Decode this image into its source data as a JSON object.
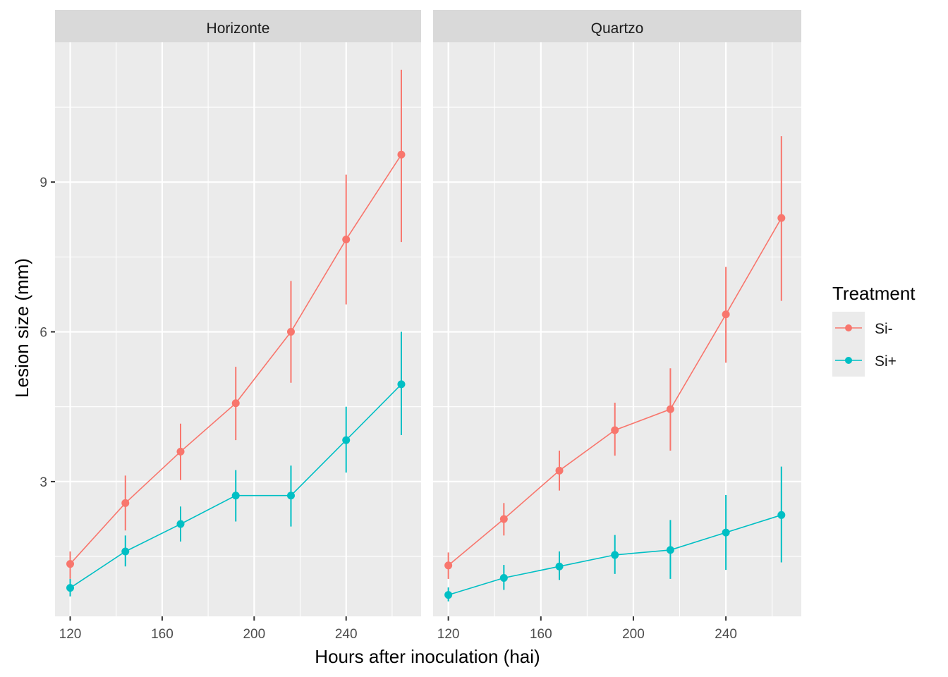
{
  "chart_data": {
    "type": "line",
    "xlabel": "Hours after inoculation (hai)",
    "ylabel": "Lesion size (mm)",
    "x_ticks": [
      120,
      160,
      200,
      240
    ],
    "y_ticks": [
      3,
      6,
      9
    ],
    "xlim": [
      113.4,
      272.6
    ],
    "ylim": [
      0.3,
      11.8
    ],
    "grid": true,
    "legend": {
      "title": "Treatment",
      "position": "right",
      "entries": [
        {
          "label": "Si-",
          "color": "#F8766D"
        },
        {
          "label": "Si+",
          "color": "#00BFC4"
        }
      ]
    },
    "x": [
      120,
      144,
      168,
      192,
      216,
      240,
      264
    ],
    "panels": [
      {
        "title": "Horizonte",
        "series": [
          {
            "name": "Si-",
            "color": "#F8766D",
            "values": [
              1.35,
              2.57,
              3.6,
              4.57,
              6.0,
              7.85,
              9.55
            ],
            "lower": [
              1.05,
              2.02,
              3.03,
              3.83,
              4.98,
              6.55,
              7.8
            ],
            "upper": [
              1.6,
              3.12,
              4.16,
              5.3,
              7.02,
              9.15,
              11.25
            ]
          },
          {
            "name": "Si+",
            "color": "#00BFC4",
            "values": [
              0.87,
              1.6,
              2.15,
              2.72,
              2.72,
              3.83,
              4.95
            ],
            "lower": [
              0.7,
              1.3,
              1.8,
              2.2,
              2.1,
              3.18,
              3.93
            ],
            "upper": [
              1.05,
              1.92,
              2.5,
              3.23,
              3.32,
              4.5,
              6.0
            ]
          }
        ]
      },
      {
        "title": "Quartzo",
        "series": [
          {
            "name": "Si-",
            "color": "#F8766D",
            "values": [
              1.32,
              2.25,
              3.22,
              4.03,
              4.45,
              6.35,
              8.28
            ],
            "lower": [
              1.05,
              1.92,
              2.82,
              3.52,
              3.62,
              5.38,
              6.62
            ],
            "upper": [
              1.58,
              2.57,
              3.62,
              4.58,
              5.27,
              7.3,
              9.92
            ]
          },
          {
            "name": "Si+",
            "color": "#00BFC4",
            "values": [
              0.73,
              1.07,
              1.3,
              1.53,
              1.63,
              1.98,
              2.33
            ],
            "lower": [
              0.6,
              0.83,
              1.03,
              1.15,
              1.05,
              1.23,
              1.38
            ],
            "upper": [
              0.88,
              1.33,
              1.6,
              1.93,
              2.23,
              2.73,
              3.3
            ]
          }
        ]
      }
    ]
  }
}
